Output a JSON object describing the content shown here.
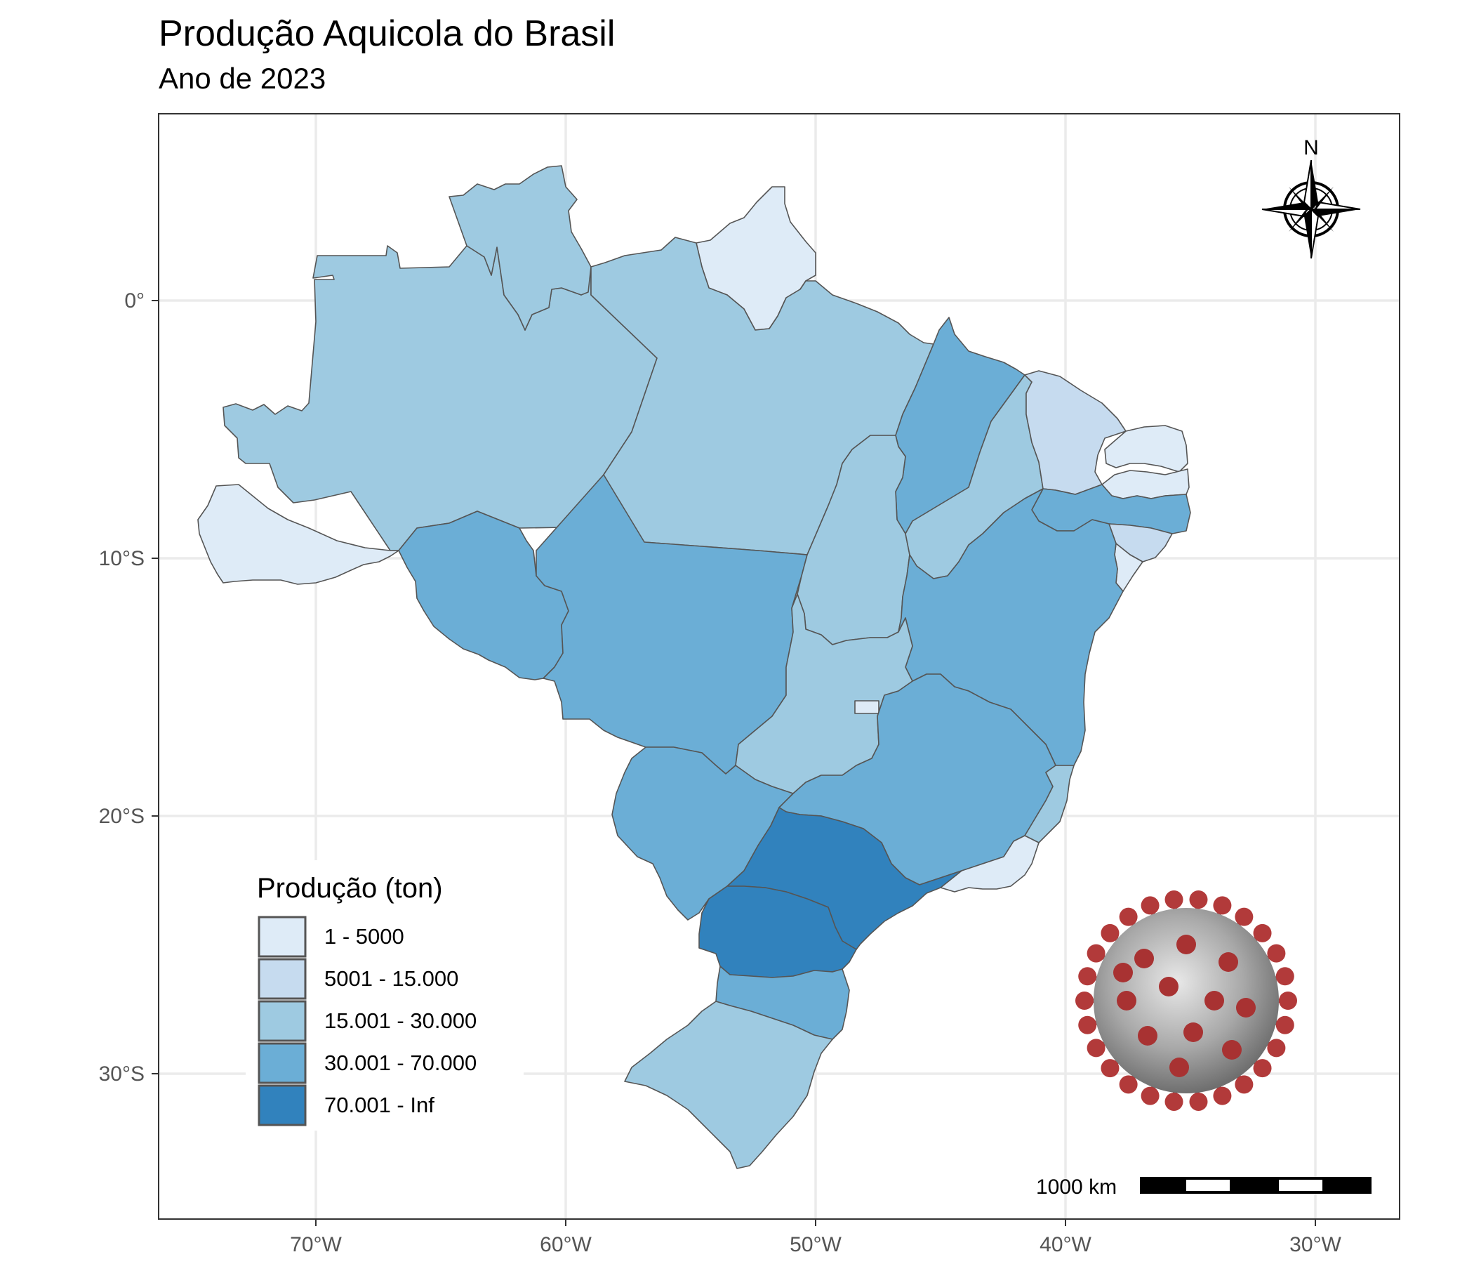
{
  "title": "Produção Aquicola do Brasil",
  "subtitle": "Ano de 2023",
  "axes": {
    "x_ticks": [
      "70°W",
      "60°W",
      "50°W",
      "40°W",
      "30°W"
    ],
    "y_ticks": [
      "0°",
      "10°S",
      "20°S",
      "30°S"
    ]
  },
  "legend": {
    "title": "Produção (ton)",
    "items": [
      {
        "label": "1 - 5000",
        "color": "#deebf7"
      },
      {
        "label": "5001 - 15.000",
        "color": "#c6dbef"
      },
      {
        "label": "15.001 - 30.000",
        "color": "#9ecae1"
      },
      {
        "label": "30.001 - 70.000",
        "color": "#6baed6"
      },
      {
        "label": "70.001 - Inf",
        "color": "#3182bd"
      }
    ]
  },
  "north_arrow": {
    "label": "N",
    "icon": "compass-rose-icon"
  },
  "scale_bar": {
    "label": "1000 km"
  },
  "image_overlay": {
    "icon": "coronavirus-icon"
  },
  "states": [
    {
      "name": "AM",
      "class": 2
    },
    {
      "name": "RR",
      "class": 2
    },
    {
      "name": "AP",
      "class": 0
    },
    {
      "name": "PA",
      "class": 2
    },
    {
      "name": "AC",
      "class": 0
    },
    {
      "name": "RO",
      "class": 3
    },
    {
      "name": "MT",
      "class": 3
    },
    {
      "name": "MA",
      "class": 3
    },
    {
      "name": "TO",
      "class": 2
    },
    {
      "name": "PI",
      "class": 2
    },
    {
      "name": "CE",
      "class": 1
    },
    {
      "name": "RN",
      "class": 0
    },
    {
      "name": "PB",
      "class": 0
    },
    {
      "name": "PE",
      "class": 3
    },
    {
      "name": "AL",
      "class": 1
    },
    {
      "name": "SE",
      "class": 0
    },
    {
      "name": "BA",
      "class": 3
    },
    {
      "name": "GO",
      "class": 2
    },
    {
      "name": "DF",
      "class": 0
    },
    {
      "name": "MS",
      "class": 3
    },
    {
      "name": "MG",
      "class": 3
    },
    {
      "name": "ES",
      "class": 2
    },
    {
      "name": "RJ",
      "class": 0
    },
    {
      "name": "SP",
      "class": 4
    },
    {
      "name": "PR",
      "class": 4
    },
    {
      "name": "SC",
      "class": 3
    },
    {
      "name": "RS",
      "class": 2
    }
  ]
}
